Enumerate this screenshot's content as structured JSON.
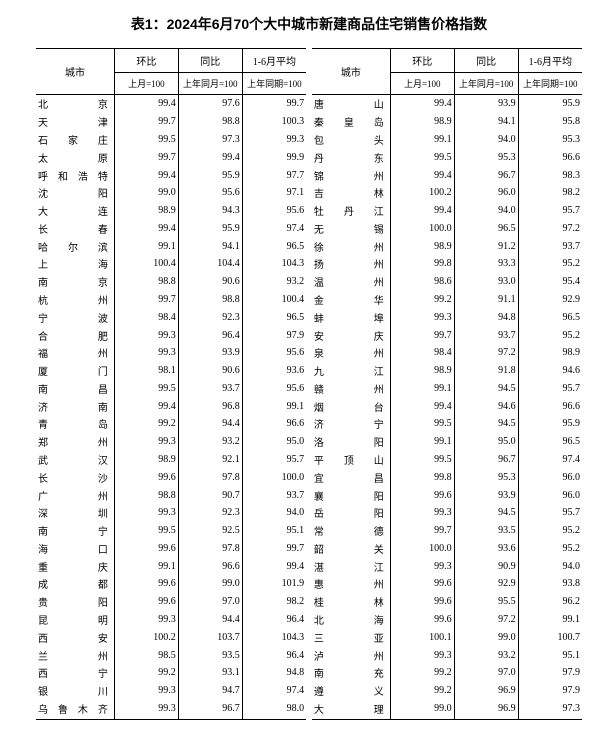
{
  "title": "表1：2024年6月70个大中城市新建商品住宅销售价格指数",
  "headers": {
    "city": "城市",
    "mom": "环比",
    "yoy": "同比",
    "avg": "1-6月平均",
    "mom_sub": "上月=100",
    "yoy_sub": "上年同月=100",
    "avg_sub": "上年同期=100"
  },
  "style": {
    "font_size_body": 10,
    "font_size_title": 14,
    "colors": {
      "text": "#000000",
      "bg": "#ffffff",
      "rule": "#000000"
    }
  },
  "left": [
    {
      "city": "北京",
      "mom": "99.4",
      "yoy": "97.6",
      "avg": "99.7"
    },
    {
      "city": "天津",
      "mom": "99.7",
      "yoy": "98.8",
      "avg": "100.3"
    },
    {
      "city": "石家庄",
      "mom": "99.5",
      "yoy": "97.3",
      "avg": "99.3"
    },
    {
      "city": "太原",
      "mom": "99.7",
      "yoy": "99.4",
      "avg": "99.9"
    },
    {
      "city": "呼和浩特",
      "mom": "99.4",
      "yoy": "95.9",
      "avg": "97.7"
    },
    {
      "city": "沈阳",
      "mom": "99.0",
      "yoy": "95.6",
      "avg": "97.1"
    },
    {
      "city": "大连",
      "mom": "98.9",
      "yoy": "94.3",
      "avg": "95.6"
    },
    {
      "city": "长春",
      "mom": "99.4",
      "yoy": "95.9",
      "avg": "97.4"
    },
    {
      "city": "哈尔滨",
      "mom": "99.1",
      "yoy": "94.1",
      "avg": "96.5"
    },
    {
      "city": "上海",
      "mom": "100.4",
      "yoy": "104.4",
      "avg": "104.3"
    },
    {
      "city": "南京",
      "mom": "98.8",
      "yoy": "90.6",
      "avg": "93.2"
    },
    {
      "city": "杭州",
      "mom": "99.7",
      "yoy": "98.8",
      "avg": "100.4"
    },
    {
      "city": "宁波",
      "mom": "98.4",
      "yoy": "92.3",
      "avg": "96.5"
    },
    {
      "city": "合肥",
      "mom": "99.3",
      "yoy": "96.4",
      "avg": "97.9"
    },
    {
      "city": "福州",
      "mom": "99.3",
      "yoy": "93.9",
      "avg": "95.6"
    },
    {
      "city": "厦门",
      "mom": "98.1",
      "yoy": "90.6",
      "avg": "93.6"
    },
    {
      "city": "南昌",
      "mom": "99.5",
      "yoy": "93.7",
      "avg": "95.6"
    },
    {
      "city": "济南",
      "mom": "99.4",
      "yoy": "96.8",
      "avg": "99.1"
    },
    {
      "city": "青岛",
      "mom": "99.2",
      "yoy": "94.4",
      "avg": "96.6"
    },
    {
      "city": "郑州",
      "mom": "99.3",
      "yoy": "93.2",
      "avg": "95.0"
    },
    {
      "city": "武汉",
      "mom": "98.9",
      "yoy": "92.1",
      "avg": "95.7"
    },
    {
      "city": "长沙",
      "mom": "99.6",
      "yoy": "97.8",
      "avg": "100.0"
    },
    {
      "city": "广州",
      "mom": "98.8",
      "yoy": "90.7",
      "avg": "93.7"
    },
    {
      "city": "深圳",
      "mom": "99.3",
      "yoy": "92.3",
      "avg": "94.0"
    },
    {
      "city": "南宁",
      "mom": "99.5",
      "yoy": "92.5",
      "avg": "95.1"
    },
    {
      "city": "海口",
      "mom": "99.6",
      "yoy": "97.8",
      "avg": "99.7"
    },
    {
      "city": "重庆",
      "mom": "99.1",
      "yoy": "96.6",
      "avg": "99.4"
    },
    {
      "city": "成都",
      "mom": "99.6",
      "yoy": "99.0",
      "avg": "101.9"
    },
    {
      "city": "贵阳",
      "mom": "99.6",
      "yoy": "97.0",
      "avg": "98.2"
    },
    {
      "city": "昆明",
      "mom": "99.3",
      "yoy": "94.4",
      "avg": "96.4"
    },
    {
      "city": "西安",
      "mom": "100.2",
      "yoy": "103.7",
      "avg": "104.3"
    },
    {
      "city": "兰州",
      "mom": "98.5",
      "yoy": "93.5",
      "avg": "96.4"
    },
    {
      "city": "西宁",
      "mom": "99.2",
      "yoy": "93.1",
      "avg": "94.8"
    },
    {
      "city": "银川",
      "mom": "99.3",
      "yoy": "94.7",
      "avg": "97.4"
    },
    {
      "city": "乌鲁木齐",
      "mom": "99.3",
      "yoy": "96.7",
      "avg": "98.0"
    }
  ],
  "right": [
    {
      "city": "唐山",
      "mom": "99.4",
      "yoy": "93.9",
      "avg": "95.9"
    },
    {
      "city": "秦皇岛",
      "mom": "98.9",
      "yoy": "94.1",
      "avg": "95.8"
    },
    {
      "city": "包头",
      "mom": "99.1",
      "yoy": "94.0",
      "avg": "95.3"
    },
    {
      "city": "丹东",
      "mom": "99.5",
      "yoy": "95.3",
      "avg": "96.6"
    },
    {
      "city": "锦州",
      "mom": "99.4",
      "yoy": "96.7",
      "avg": "98.3"
    },
    {
      "city": "吉林",
      "mom": "100.2",
      "yoy": "96.0",
      "avg": "98.2"
    },
    {
      "city": "牡丹江",
      "mom": "99.4",
      "yoy": "94.0",
      "avg": "95.7"
    },
    {
      "city": "无锡",
      "mom": "100.0",
      "yoy": "96.5",
      "avg": "97.2"
    },
    {
      "city": "徐州",
      "mom": "98.9",
      "yoy": "91.2",
      "avg": "93.7"
    },
    {
      "city": "扬州",
      "mom": "99.8",
      "yoy": "93.3",
      "avg": "95.2"
    },
    {
      "city": "温州",
      "mom": "98.6",
      "yoy": "93.0",
      "avg": "95.4"
    },
    {
      "city": "金华",
      "mom": "99.2",
      "yoy": "91.1",
      "avg": "92.9"
    },
    {
      "city": "蚌埠",
      "mom": "99.3",
      "yoy": "94.8",
      "avg": "96.5"
    },
    {
      "city": "安庆",
      "mom": "99.7",
      "yoy": "93.7",
      "avg": "95.2"
    },
    {
      "city": "泉州",
      "mom": "98.4",
      "yoy": "97.2",
      "avg": "98.9"
    },
    {
      "city": "九江",
      "mom": "98.9",
      "yoy": "91.8",
      "avg": "94.6"
    },
    {
      "city": "赣州",
      "mom": "99.1",
      "yoy": "94.5",
      "avg": "95.7"
    },
    {
      "city": "烟台",
      "mom": "99.4",
      "yoy": "94.6",
      "avg": "96.6"
    },
    {
      "city": "济宁",
      "mom": "99.5",
      "yoy": "94.5",
      "avg": "95.9"
    },
    {
      "city": "洛阳",
      "mom": "99.1",
      "yoy": "95.0",
      "avg": "96.5"
    },
    {
      "city": "平顶山",
      "mom": "99.5",
      "yoy": "96.7",
      "avg": "97.4"
    },
    {
      "city": "宜昌",
      "mom": "99.8",
      "yoy": "95.3",
      "avg": "96.0"
    },
    {
      "city": "襄阳",
      "mom": "99.6",
      "yoy": "93.9",
      "avg": "96.0"
    },
    {
      "city": "岳阳",
      "mom": "99.3",
      "yoy": "94.5",
      "avg": "95.7"
    },
    {
      "city": "常德",
      "mom": "99.7",
      "yoy": "93.5",
      "avg": "95.2"
    },
    {
      "city": "韶关",
      "mom": "100.0",
      "yoy": "93.6",
      "avg": "95.2"
    },
    {
      "city": "湛江",
      "mom": "99.3",
      "yoy": "90.9",
      "avg": "94.0"
    },
    {
      "city": "惠州",
      "mom": "99.6",
      "yoy": "92.9",
      "avg": "93.8"
    },
    {
      "city": "桂林",
      "mom": "99.6",
      "yoy": "95.5",
      "avg": "96.2"
    },
    {
      "city": "北海",
      "mom": "99.6",
      "yoy": "97.2",
      "avg": "99.1"
    },
    {
      "city": "三亚",
      "mom": "100.1",
      "yoy": "99.0",
      "avg": "100.7"
    },
    {
      "city": "泸州",
      "mom": "99.3",
      "yoy": "93.2",
      "avg": "95.1"
    },
    {
      "city": "南充",
      "mom": "99.2",
      "yoy": "97.0",
      "avg": "97.9"
    },
    {
      "city": "遵义",
      "mom": "99.2",
      "yoy": "96.9",
      "avg": "97.9"
    },
    {
      "city": "大理",
      "mom": "99.0",
      "yoy": "96.9",
      "avg": "97.3"
    }
  ]
}
